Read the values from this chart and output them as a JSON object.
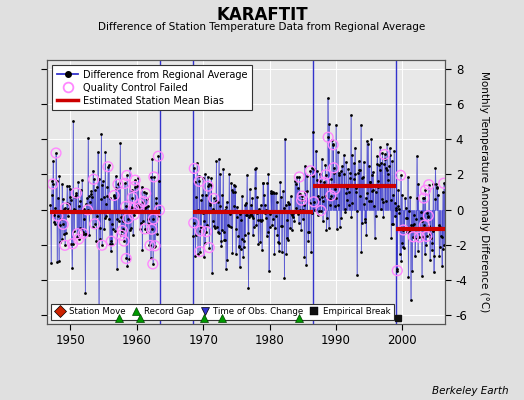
{
  "title": "KARAFTIT",
  "subtitle": "Difference of Station Temperature Data from Regional Average",
  "ylabel": "Monthly Temperature Anomaly Difference (°C)",
  "credit": "Berkeley Earth",
  "xlim": [
    1946.5,
    2006.5
  ],
  "ylim": [
    -6.5,
    8.5
  ],
  "yticks": [
    -6,
    -4,
    -2,
    0,
    2,
    4,
    6,
    8
  ],
  "xticks": [
    1950,
    1960,
    1970,
    1980,
    1990,
    2000
  ],
  "fig_bg": "#e0e0e0",
  "plot_bg": "#e8e8e8",
  "grid_color": "#ffffff",
  "line_color": "#3333cc",
  "dot_color": "#000000",
  "qc_color": "#ff88ff",
  "bias_color": "#cc0000",
  "bias_segments": [
    {
      "x_start": 1947.0,
      "x_end": 1963.5,
      "y": -0.15
    },
    {
      "x_start": 1968.5,
      "x_end": 1978.5,
      "y": -0.15
    },
    {
      "x_start": 1978.5,
      "x_end": 1986.5,
      "y": -0.15
    },
    {
      "x_start": 1986.5,
      "x_end": 1999.0,
      "y": 1.35
    },
    {
      "x_start": 1999.0,
      "x_end": 2006.5,
      "y": -1.1
    }
  ],
  "gap_lines": [
    {
      "x": 1963.5
    },
    {
      "x": 1968.5
    },
    {
      "x": 1986.5
    },
    {
      "x": 1999.0
    }
  ],
  "record_gaps": [
    1957.3,
    1960.5,
    1970.1,
    1972.8,
    1984.5
  ],
  "empirical_breaks": [
    1999.3
  ],
  "random_seed": 17,
  "spread": 1.55
}
